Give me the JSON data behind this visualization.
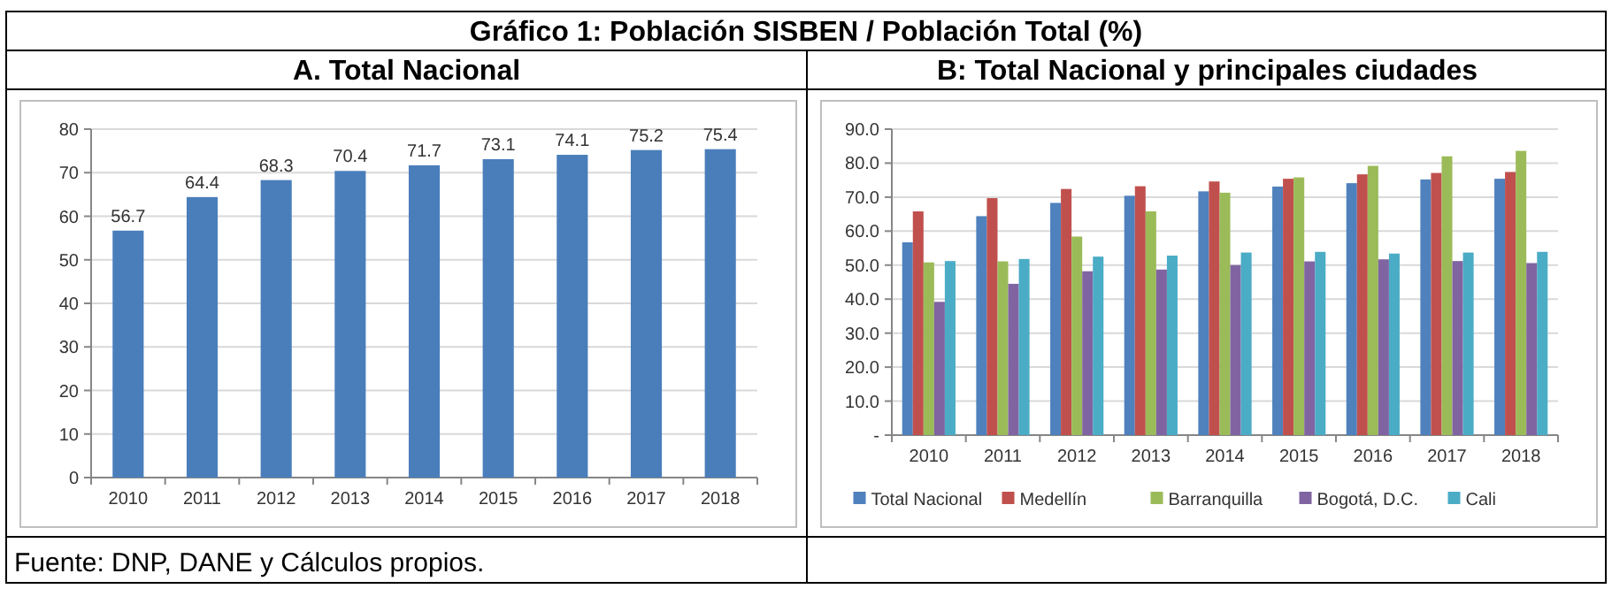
{
  "chart_data": [
    {
      "type": "bar",
      "title": "Gráfico 1: Población SISBEN / Población Total (%)",
      "subtitle": "A. Total Nacional",
      "annotations": [
        "Fuente: DNP, DANE y Cálculos propios."
      ],
      "categories": [
        "2010",
        "2011",
        "2012",
        "2013",
        "2014",
        "2015",
        "2016",
        "2017",
        "2018"
      ],
      "values": [
        56.7,
        64.4,
        68.3,
        70.4,
        71.7,
        73.1,
        74.1,
        75.2,
        75.4
      ],
      "color": "#4a7ebb",
      "ylim": [
        0,
        80
      ],
      "yticks": [
        0,
        10,
        20,
        30,
        40,
        50,
        60,
        70,
        80
      ],
      "grid": "y",
      "data_labels": true
    },
    {
      "type": "bar",
      "title": "B: Total Nacional y principales ciudades",
      "categories": [
        "2010",
        "2011",
        "2012",
        "2013",
        "2014",
        "2015",
        "2016",
        "2017",
        "2018"
      ],
      "series": [
        {
          "name": "Total Nacional",
          "color": "#4f81bd",
          "values": [
            56.7,
            64.4,
            68.3,
            70.4,
            71.7,
            73.1,
            74.1,
            75.2,
            75.4
          ]
        },
        {
          "name": "Medellín",
          "color": "#c0504d",
          "values": [
            65.8,
            69.7,
            72.4,
            73.2,
            74.6,
            75.4,
            76.7,
            77.1,
            77.4
          ]
        },
        {
          "name": "Barranquilla",
          "color": "#9bbb59",
          "values": [
            50.8,
            51.1,
            58.4,
            65.8,
            71.3,
            75.8,
            79.2,
            82.0,
            83.6
          ]
        },
        {
          "name": "Bogotá, D.C.",
          "color": "#8064a2",
          "values": [
            39.2,
            44.5,
            48.2,
            48.7,
            50.0,
            51.1,
            51.7,
            51.2,
            50.6
          ]
        },
        {
          "name": "Cali",
          "color": "#4bacc6",
          "values": [
            51.2,
            51.8,
            52.5,
            52.8,
            53.7,
            53.9,
            53.4,
            53.7,
            53.9
          ]
        }
      ],
      "ylim": [
        0,
        90
      ],
      "yticks": [
        {
          "value": 0,
          "label": "-"
        },
        {
          "value": 10,
          "label": "10.0"
        },
        {
          "value": 20,
          "label": "20.0"
        },
        {
          "value": 30,
          "label": "30.0"
        },
        {
          "value": 40,
          "label": "40.0"
        },
        {
          "value": 50,
          "label": "50.0"
        },
        {
          "value": 60,
          "label": "60.0"
        },
        {
          "value": 70,
          "label": "70.0"
        },
        {
          "value": 80,
          "label": "80.0"
        },
        {
          "value": 90,
          "label": "90.0"
        }
      ],
      "grid": "y",
      "legend": "bottom"
    }
  ]
}
